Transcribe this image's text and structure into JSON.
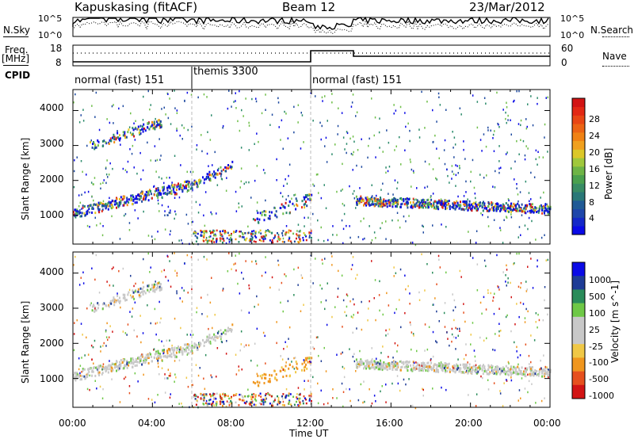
{
  "header": {
    "station": "Kapuskasing (fitACF)",
    "beam": "Beam 12",
    "date": "23/Mar/2012"
  },
  "noise_panel": {
    "left_label": "N.Sky",
    "right_label": "N.Search",
    "left_ticks": [
      "10^5",
      "10^0"
    ],
    "right_ticks": [
      "10^5",
      "10^0"
    ]
  },
  "freq_panel": {
    "left_label_1": "Freq.",
    "left_label_2": "[MHz]",
    "right_label": "Nave",
    "left_ticks": [
      "18",
      "8"
    ],
    "right_ticks": [
      "60",
      "0"
    ]
  },
  "cpid": {
    "label": "CPID",
    "segments": [
      {
        "start": 0,
        "end": 6,
        "text": "normal (fast) 151"
      },
      {
        "start": 6,
        "end": 12,
        "text": "themis 3300"
      },
      {
        "start": 12,
        "end": 24,
        "text": "normal (fast) 151"
      }
    ]
  },
  "colors": {
    "power": [
      "#0a0ae6",
      "#1e4aa0",
      "#2a8a6a",
      "#6fbf4a",
      "#e6c81e",
      "#f08a14",
      "#e6321e",
      "#d21414"
    ],
    "velocity": [
      "#d21414",
      "#e6501e",
      "#f0961e",
      "#f0c846",
      "#c8c8c8",
      "#6ec846",
      "#2a8c5a",
      "#1e3c96",
      "#0a0ae6"
    ]
  },
  "chart_data": [
    {
      "type": "heatmap",
      "title": "",
      "ylabel": "Slant Range [km]",
      "ylim": [
        180,
        4600
      ],
      "xlim": [
        0,
        24
      ],
      "y_ticks": [
        "1000",
        "2000",
        "3000",
        "4000"
      ],
      "colorbar": {
        "label": "Power [dB]",
        "ticks": [
          "4",
          "8",
          "12",
          "16",
          "20",
          "24",
          "28"
        ],
        "range": [
          0,
          30
        ]
      },
      "features": [
        {
          "start_ut": 0.0,
          "end_ut": 6.0,
          "range_km": "1100-1900",
          "description": "band rising in range"
        },
        {
          "start_ut": 6.0,
          "end_ut": 8.0,
          "range_km": "1900-2500",
          "description": "rising band"
        },
        {
          "start_ut": 14.2,
          "end_ut": 24.0,
          "range_km": "1100-1600",
          "description": "steady band"
        }
      ]
    },
    {
      "type": "heatmap",
      "title": "",
      "xlabel": "Time UT",
      "ylabel": "Slant Range [km]",
      "ylim": [
        180,
        4600
      ],
      "xlim": [
        0,
        24
      ],
      "x_ticks": [
        "00:00",
        "04:00",
        "08:00",
        "12:00",
        "16:00",
        "20:00",
        "00:00"
      ],
      "y_ticks": [
        "1000",
        "2000",
        "3000",
        "4000"
      ],
      "colorbar": {
        "label": "Velocity [m s^-1]",
        "ticks": [
          "1000",
          "500",
          "100",
          "25",
          "-25",
          "-100",
          "-500",
          "-1000"
        ]
      }
    }
  ]
}
